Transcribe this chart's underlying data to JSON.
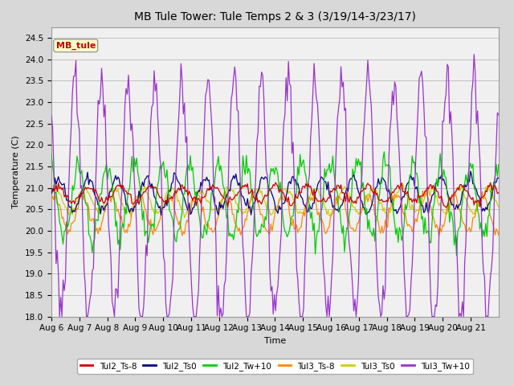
{
  "title": "MB Tule Tower: Tule Temps 2 & 3 (3/19/14-3/23/17)",
  "xlabel": "Time",
  "ylabel": "Temperature (C)",
  "ylim": [
    18.0,
    24.75
  ],
  "yticks": [
    18.0,
    18.5,
    19.0,
    19.5,
    20.0,
    20.5,
    21.0,
    21.5,
    22.0,
    22.5,
    23.0,
    23.5,
    24.0,
    24.5
  ],
  "x_labels": [
    "Aug 6",
    "Aug 7",
    "Aug 8",
    "Aug 9",
    "Aug 10",
    "Aug 11",
    "Aug 12",
    "Aug 13",
    "Aug 14",
    "Aug 15",
    "Aug 16",
    "Aug 17",
    "Aug 18",
    "Aug 19",
    "Aug 20",
    "Aug 21"
  ],
  "n_days": 16,
  "legend_labels": [
    "Tul2_Ts-8",
    "Tul2_Ts0",
    "Tul2_Tw+10",
    "Tul3_Ts-8",
    "Tul3_Ts0",
    "Tul3_Tw+10"
  ],
  "legend_colors": [
    "#cc0000",
    "#00007f",
    "#00cc00",
    "#ff8800",
    "#cccc00",
    "#9933cc"
  ],
  "box_label": "MB_tule",
  "box_color": "#cc0000",
  "background_color": "#d8d8d8",
  "plot_background": "#f0f0f0",
  "grid_color": "#c0c0c0",
  "title_fontsize": 10,
  "label_fontsize": 8,
  "tick_fontsize": 7.5,
  "figwidth": 6.4,
  "figheight": 4.8,
  "dpi": 100
}
